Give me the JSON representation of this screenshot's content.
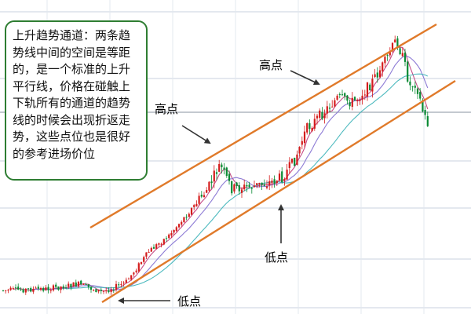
{
  "chart_data": {
    "type": "candlestick",
    "title": "",
    "note_lines": [
      "上升趋势通道：两条趋",
      "势线中间的空间是等距",
      "的，是一个标准的上升",
      "平行线，价格在碰触上",
      "下轨所有的通道的趋势",
      "线的时候会出现折返走",
      "势，这些点位也是很好",
      "的参考进场价位"
    ],
    "labels": {
      "high_left": "高点",
      "high_top": "高点",
      "low_middle": "低点",
      "low_bottom": "低点"
    },
    "colors": {
      "up": "#d41c1c",
      "down": "#0a8a34",
      "channel": "#e07a2a",
      "ma1": "#c0397a",
      "ma2": "#3bb3b8",
      "ma3": "#7f6bd0",
      "box_border": "#2e7d32"
    }
  }
}
